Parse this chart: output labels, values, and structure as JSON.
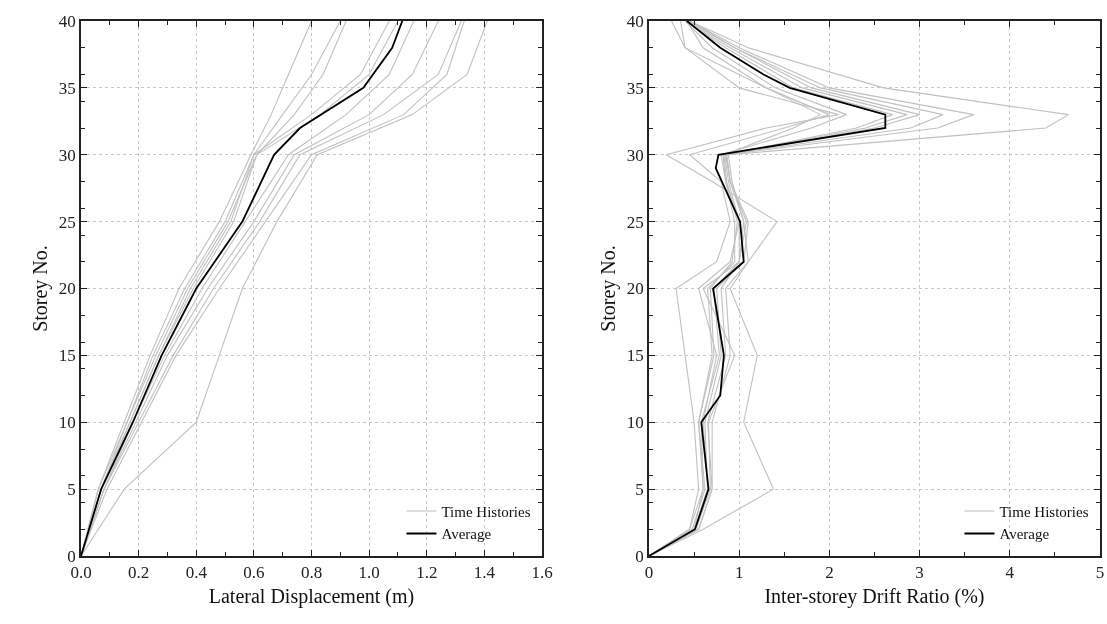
{
  "chart_data": [
    {
      "type": "line",
      "xlabel": "Lateral Displacement (m)",
      "ylabel": "Storey No.",
      "xlim": [
        0,
        1.6
      ],
      "xticks": [
        {
          "value": 0,
          "label": "0.0"
        },
        0.2,
        0.4,
        0.6,
        0.8,
        {
          "value": 1,
          "label": "1.0"
        },
        1.2,
        1.4,
        1.6
      ],
      "ylim": [
        0,
        40
      ],
      "yticks": [
        0,
        5,
        10,
        15,
        20,
        25,
        30,
        35,
        40
      ],
      "grid": true,
      "legend": "bottom right",
      "series": [
        {
          "name": "Time Histories",
          "color": "#c0c0c0",
          "x": [
            0,
            0.06,
            0.15,
            0.24,
            0.34,
            0.48,
            0.59,
            0.66,
            0.72,
            0.8
          ],
          "values": [
            0,
            5,
            10,
            15,
            20,
            25,
            30,
            33,
            36,
            40
          ]
        },
        {
          "color": "#c0c0c0",
          "x": [
            0,
            0.06,
            0.16,
            0.25,
            0.36,
            0.5,
            0.6,
            0.7,
            0.8,
            0.9
          ],
          "values": [
            0,
            5,
            10,
            15,
            20,
            25,
            30,
            33,
            36,
            40
          ]
        },
        {
          "color": "#c0c0c0",
          "x": [
            0,
            0.07,
            0.16,
            0.26,
            0.37,
            0.51,
            0.61,
            0.74,
            0.84,
            0.92
          ],
          "values": [
            0,
            5,
            10,
            15,
            20,
            25,
            30,
            33,
            36,
            40
          ]
        },
        {
          "color": "#c0c0c0",
          "x": [
            0,
            0.07,
            0.17,
            0.27,
            0.38,
            0.52,
            0.6,
            0.8,
            0.97,
            1.07
          ],
          "values": [
            0,
            5,
            10,
            15,
            20,
            25,
            30,
            33,
            36,
            40
          ]
        },
        {
          "color": "#c0c0c0",
          "x": [
            0,
            0.07,
            0.17,
            0.27,
            0.39,
            0.53,
            0.61,
            0.83,
            1.0,
            1.1
          ],
          "values": [
            0,
            5,
            10,
            15,
            20,
            25,
            30,
            33,
            36,
            40
          ]
        },
        {
          "color": "#c0c0c0",
          "x": [
            0,
            0.08,
            0.18,
            0.29,
            0.42,
            0.57,
            0.72,
            0.92,
            1.07,
            1.155
          ],
          "values": [
            0,
            5,
            10,
            15,
            20,
            25,
            30,
            33,
            36,
            40
          ]
        },
        {
          "color": "#c0c0c0",
          "x": [
            0,
            0.08,
            0.19,
            0.3,
            0.44,
            0.6,
            0.74,
            1.0,
            1.15,
            1.24
          ],
          "values": [
            0,
            5,
            10,
            15,
            20,
            25,
            30,
            33,
            36,
            40
          ]
        },
        {
          "color": "#c0c0c0",
          "x": [
            0,
            0.08,
            0.2,
            0.32,
            0.46,
            0.62,
            0.76,
            1.05,
            1.24,
            1.32
          ],
          "values": [
            0,
            5,
            10,
            15,
            20,
            25,
            30,
            33,
            36,
            40
          ]
        },
        {
          "color": "#c0c0c0",
          "x": [
            0,
            0.09,
            0.21,
            0.33,
            0.48,
            0.64,
            0.8,
            1.12,
            1.27,
            1.33
          ],
          "values": [
            0,
            5,
            10,
            15,
            20,
            25,
            30,
            33,
            36,
            40
          ]
        },
        {
          "color": "#c0c0c0",
          "x": [
            0,
            0.15,
            0.4,
            0.48,
            0.56,
            0.68,
            0.82,
            1.15,
            1.34,
            1.41
          ],
          "values": [
            0,
            5,
            10,
            15,
            20,
            25,
            30,
            33,
            36,
            40
          ]
        },
        {
          "name": "Average",
          "color": "#000000",
          "x": [
            0,
            0.07,
            0.18,
            0.28,
            0.4,
            0.56,
            0.67,
            0.76,
            0.98,
            1.08,
            1.115
          ],
          "values": [
            0,
            5,
            10,
            15,
            20,
            25,
            30,
            32,
            35,
            38,
            40
          ]
        }
      ]
    },
    {
      "type": "line",
      "xlabel": "Inter-storey Drift Ratio (%)",
      "ylabel": "Storey No.",
      "xlim": [
        0,
        5
      ],
      "xticks": [
        0,
        1,
        2,
        3,
        4,
        5
      ],
      "ylim": [
        0,
        40
      ],
      "yticks": [
        0,
        5,
        10,
        15,
        20,
        25,
        30,
        35,
        40
      ],
      "grid": true,
      "legend": "bottom right",
      "series": [
        {
          "name": "Time Histories",
          "color": "#c0c0c0",
          "x": [
            0,
            0.5,
            0.65,
            0.6,
            0.75,
            0.55,
            0.9,
            1.0,
            0.85,
            0.8,
            1.8,
            2.19,
            1.4,
            0.7,
            0.4
          ],
          "values": [
            0,
            2,
            5,
            10,
            15,
            20,
            22,
            25,
            28,
            30,
            32,
            33,
            35,
            38,
            40
          ]
        },
        {
          "color": "#c0c0c0",
          "x": [
            0,
            0.55,
            0.7,
            0.65,
            0.85,
            0.8,
            1.0,
            1.05,
            0.9,
            0.85,
            2.4,
            2.86,
            1.7,
            0.9,
            0.4
          ],
          "values": [
            0,
            2,
            5,
            10,
            15,
            20,
            22,
            25,
            28,
            30,
            32,
            33,
            35,
            38,
            40
          ]
        },
        {
          "color": "#c0c0c0",
          "x": [
            0,
            0.45,
            0.6,
            0.55,
            0.7,
            0.65,
            0.95,
            0.95,
            0.85,
            0.82,
            2.9,
            3.26,
            1.9,
            0.95,
            0.45
          ],
          "values": [
            0,
            2,
            5,
            10,
            15,
            20,
            22,
            25,
            28,
            30,
            32,
            33,
            35,
            38,
            40
          ]
        },
        {
          "color": "#c0c0c0",
          "x": [
            0,
            0.5,
            0.65,
            0.62,
            0.8,
            0.75,
            1.05,
            1.1,
            0.9,
            0.86,
            3.2,
            3.6,
            2.0,
            1.0,
            0.45
          ],
          "values": [
            0,
            2,
            5,
            10,
            15,
            20,
            22,
            25,
            28,
            30,
            32,
            33,
            35,
            38,
            40
          ]
        },
        {
          "color": "#c0c0c0",
          "x": [
            0,
            0.55,
            0.7,
            0.7,
            0.9,
            0.85,
            1.1,
            1.05,
            0.92,
            0.88,
            4.4,
            4.65,
            2.6,
            1.1,
            0.45
          ],
          "values": [
            0,
            2,
            5,
            10,
            15,
            20,
            22,
            25,
            28,
            30,
            32,
            33,
            35,
            38,
            40
          ]
        },
        {
          "color": "#c0c0c0",
          "x": [
            0,
            0.6,
            1.38,
            1.05,
            1.2,
            0.9,
            1.1,
            1.42,
            0.7,
            0.19,
            1.3,
            2.1,
            1.0,
            0.4,
            0.25
          ],
          "values": [
            0,
            2,
            5,
            10,
            15,
            20,
            22,
            25,
            28,
            30,
            32,
            33,
            35,
            38,
            40
          ]
        },
        {
          "color": "#c0c0c0",
          "x": [
            0,
            0.45,
            0.55,
            0.5,
            0.4,
            0.3,
            0.75,
            0.9,
            0.8,
            0.45,
            1.5,
            2.0,
            1.3,
            0.4,
            0.35
          ],
          "values": [
            0,
            2,
            5,
            10,
            15,
            20,
            22,
            25,
            28,
            30,
            32,
            33,
            35,
            38,
            40
          ]
        },
        {
          "color": "#c0c0c0",
          "x": [
            0,
            0.5,
            0.6,
            0.58,
            0.78,
            0.72,
            1.0,
            1.0,
            0.88,
            0.84,
            2.3,
            2.7,
            1.6,
            0.85,
            0.4
          ],
          "values": [
            0,
            2,
            5,
            10,
            15,
            20,
            22,
            25,
            28,
            30,
            32,
            33,
            35,
            38,
            40
          ]
        },
        {
          "color": "#c0c0c0",
          "x": [
            0,
            0.48,
            0.62,
            0.55,
            0.72,
            0.68,
            0.92,
            0.98,
            0.86,
            0.83,
            1.6,
            1.9,
            1.3,
            0.6,
            0.42
          ],
          "values": [
            0,
            2,
            5,
            10,
            15,
            20,
            22,
            25,
            28,
            30,
            32,
            33,
            35,
            38,
            40
          ]
        },
        {
          "color": "#c0c0c0",
          "x": [
            0,
            0.52,
            0.68,
            0.66,
            0.95,
            0.6,
            1.0,
            1.08,
            0.9,
            0.86,
            2.5,
            3.0,
            1.8,
            0.95,
            0.42
          ],
          "values": [
            0,
            2,
            5,
            10,
            15,
            20,
            22,
            25,
            28,
            30,
            32,
            33,
            35,
            38,
            40
          ]
        },
        {
          "name": "Average",
          "color": "#000000",
          "x": [
            0,
            0.51,
            0.66,
            0.62,
            0.58,
            0.79,
            0.83,
            0.71,
            1.05,
            1.01,
            0.74,
            0.77,
            2.62,
            2.62,
            1.56,
            1.27,
            0.79,
            0.42
          ],
          "values": [
            0,
            2,
            5,
            7.5,
            10,
            12,
            15,
            20,
            22,
            25,
            29,
            30,
            32,
            33,
            35,
            36,
            38,
            40
          ]
        }
      ]
    }
  ]
}
